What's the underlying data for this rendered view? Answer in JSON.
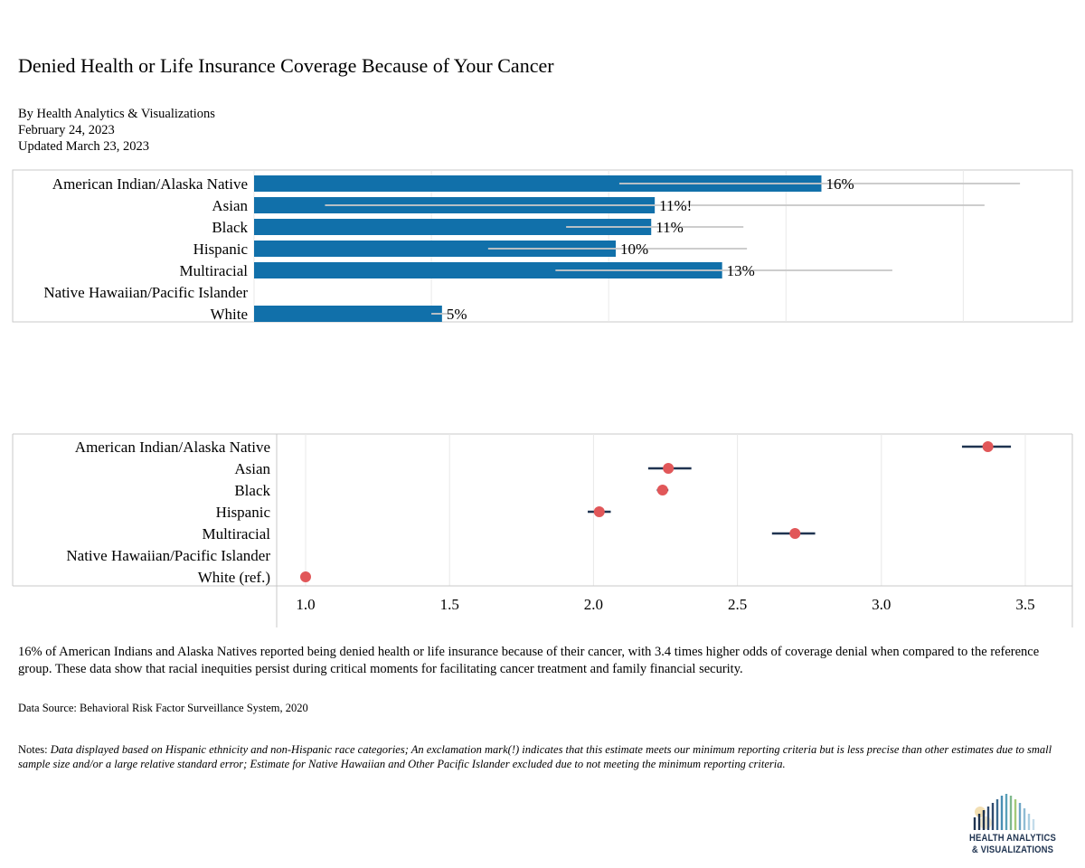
{
  "header": {
    "title": "Denied Health or Life Insurance Coverage Because of Your Cancer",
    "byline": "By Health Analytics & Visualizations",
    "published": "February 24, 2023",
    "updated": "Updated March 23, 2023"
  },
  "colors": {
    "bar": "#1170aa",
    "ci_bar": "#c8c8c8",
    "dot": "#e15759",
    "ci_dot": "#1f3350",
    "grid": "#e8e8e8",
    "frame": "#c9c9c9"
  },
  "chart_data": [
    {
      "type": "bar",
      "orientation": "horizontal",
      "categories": [
        "American Indian/Alaska Native",
        "Asian",
        "Black",
        "Hispanic",
        "Multiracial",
        "Native Hawaiian/Pacific Islander",
        "White"
      ],
      "values": [
        16,
        11.3,
        11.2,
        10.2,
        13.2,
        null,
        5.3
      ],
      "labels": [
        "16%",
        "11%!",
        "11%",
        "10%",
        "13%",
        "",
        "5%"
      ],
      "ci_low": [
        10.3,
        2.0,
        8.8,
        6.6,
        8.5,
        null,
        5.0
      ],
      "ci_high": [
        21.6,
        20.6,
        13.8,
        13.9,
        18.0,
        null,
        5.6
      ],
      "xlim": [
        0,
        23
      ],
      "grid": true
    },
    {
      "type": "scatter",
      "orientation": "horizontal",
      "categories": [
        "American Indian/Alaska Native",
        "Asian",
        "Black",
        "Hispanic",
        "Multiracial",
        "Native Hawaiian/Pacific Islander",
        "White (ref.)"
      ],
      "values": [
        3.37,
        2.26,
        2.24,
        2.02,
        2.7,
        null,
        1.0
      ],
      "ci_low": [
        3.28,
        2.19,
        2.22,
        1.98,
        2.62,
        null,
        null
      ],
      "ci_high": [
        3.45,
        2.34,
        2.26,
        2.06,
        2.77,
        null,
        null
      ],
      "xlim": [
        0.9,
        3.65
      ],
      "xticks": [
        1.0,
        1.5,
        2.0,
        2.5,
        3.0,
        3.5
      ],
      "xtick_labels": [
        "1.0",
        "1.5",
        "2.0",
        "2.5",
        "3.0",
        "3.5"
      ],
      "grid": true
    }
  ],
  "footer": {
    "summary": "16% of American Indians and Alaska Natives reported being denied health or life insurance because of their cancer, with 3.4 times higher odds of coverage denial when compared to the reference group. These data show that racial inequities persist during critical moments for facilitating cancer treatment and family financial security.",
    "source": "Data Source: Behavioral Risk Factor Surveillance System, 2020",
    "notes_label": "Notes:",
    "notes_text": "Data displayed based on Hispanic ethnicity and non-Hispanic race categories; An exclamation mark(!) indicates that this estimate meets our minimum reporting criteria but is less precise than other estimates due to small sample size and/or a large relative standard error; Estimate for Native Hawaiian and Other Pacific Islander excluded due to not meeting the minimum reporting criteria."
  },
  "logo": {
    "line1": "HEALTH ANALYTICS",
    "line2": "& VISUALIZATIONS"
  }
}
